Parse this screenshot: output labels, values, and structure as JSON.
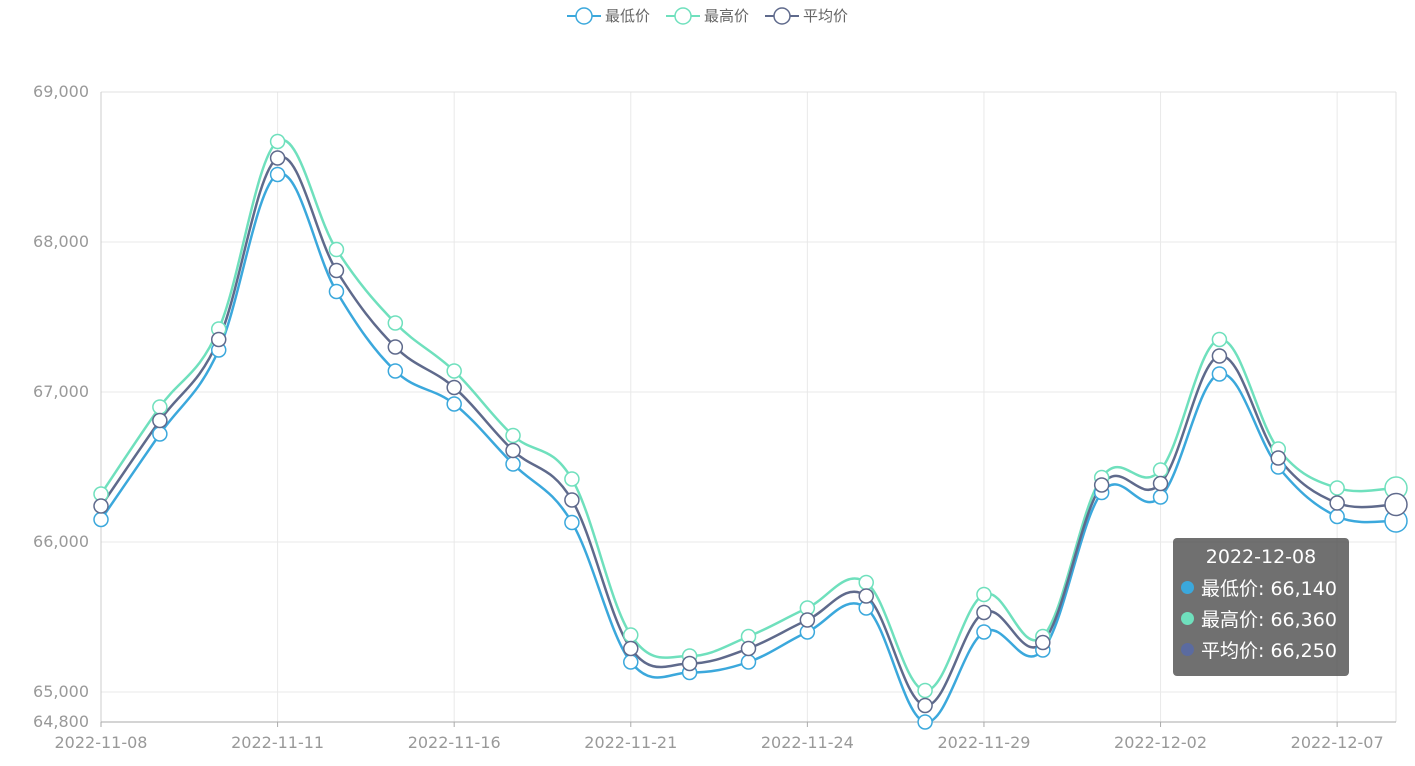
{
  "legend": {
    "items": [
      {
        "label": "最低价",
        "color": "#3ba8dc"
      },
      {
        "label": "最高价",
        "color": "#6fe0bd"
      },
      {
        "label": "平均价",
        "color": "#5f6a8c"
      }
    ]
  },
  "tooltip": {
    "title": "2022-12-08",
    "rows": [
      {
        "label": "最低价: 66,140",
        "color": "#3ba8dc"
      },
      {
        "label": "最高价: 66,360",
        "color": "#6fe0bd"
      },
      {
        "label": "平均价: 66,250",
        "color": "#5b6ba0"
      }
    ]
  },
  "chart_data": {
    "type": "line",
    "smooth": true,
    "x": [
      "2022-11-08",
      "2022-11-09",
      "2022-11-10",
      "2022-11-11",
      "2022-11-14",
      "2022-11-15",
      "2022-11-16",
      "2022-11-17",
      "2022-11-18",
      "2022-11-21",
      "2022-11-22",
      "2022-11-23",
      "2022-11-24",
      "2022-11-25",
      "2022-11-28",
      "2022-11-29",
      "2022-11-30",
      "2022-12-01",
      "2022-12-02",
      "2022-12-05",
      "2022-12-06",
      "2022-12-07",
      "2022-12-08"
    ],
    "x_tick_labels": [
      "2022-11-08",
      "2022-11-11",
      "2022-11-16",
      "2022-11-21",
      "2022-11-24",
      "2022-11-29",
      "2022-12-02",
      "2022-12-07"
    ],
    "x_tick_indices": [
      0,
      3,
      6,
      9,
      12,
      15,
      18,
      21
    ],
    "y_tick_labels": [
      "64,800",
      "65,000",
      "66,000",
      "67,000",
      "68,000",
      "69,000"
    ],
    "y_ticks": [
      64800,
      65000,
      66000,
      67000,
      68000,
      69000
    ],
    "ylim": [
      64800,
      69000
    ],
    "grid": true,
    "legend_position": "top-center",
    "highlighted_index": 22,
    "series": [
      {
        "name": "最低价",
        "color": "#3ba8dc",
        "values": [
          66150,
          66720,
          67280,
          68450,
          67670,
          67140,
          66920,
          66520,
          66130,
          65200,
          65130,
          65200,
          65400,
          65560,
          64800,
          65400,
          65280,
          66330,
          66300,
          67120,
          66500,
          66170,
          66140
        ]
      },
      {
        "name": "最高价",
        "color": "#6fe0bd",
        "values": [
          66320,
          66900,
          67420,
          68670,
          67950,
          67460,
          67140,
          66710,
          66420,
          65380,
          65240,
          65370,
          65560,
          65730,
          65010,
          65650,
          65370,
          66430,
          66480,
          67350,
          66620,
          66360,
          66360
        ]
      },
      {
        "name": "平均价",
        "color": "#5f6a8c",
        "values": [
          66240,
          66810,
          67350,
          68560,
          67810,
          67300,
          67030,
          66610,
          66280,
          65290,
          65190,
          65290,
          65480,
          65640,
          64910,
          65530,
          65330,
          66380,
          66390,
          67240,
          66560,
          66260,
          66250
        ]
      }
    ]
  }
}
